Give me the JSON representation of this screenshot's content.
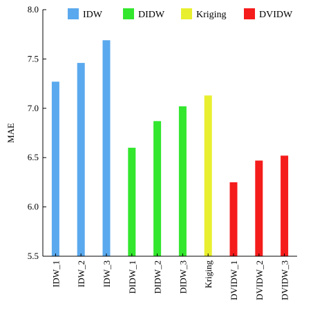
{
  "chart_data": {
    "type": "bar",
    "title": "",
    "xlabel": "",
    "ylabel": "MAE",
    "ylim": [
      5.5,
      8.0
    ],
    "yticks": [
      "5.5",
      "6.0",
      "6.5",
      "7.0",
      "7.5",
      "8.0"
    ],
    "grid": false,
    "legend_position": "top",
    "categories": [
      "IDW_1",
      "IDW_2",
      "IDW_3",
      "DIDW_1",
      "DIDW_2",
      "DIDW_3",
      "Kriging",
      "DVIDW_1",
      "DVIDW_2",
      "DVIDW_3"
    ],
    "values": [
      7.27,
      7.46,
      7.69,
      6.6,
      6.87,
      7.02,
      7.13,
      6.25,
      6.47,
      6.52
    ],
    "groups": [
      "IDW",
      "IDW",
      "IDW",
      "DIDW",
      "DIDW",
      "DIDW",
      "Kriging",
      "DVIDW",
      "DVIDW",
      "DVIDW"
    ],
    "series": [
      {
        "name": "IDW",
        "color": "#5aa9ee"
      },
      {
        "name": "DIDW",
        "color": "#33e62e"
      },
      {
        "name": "Kriging",
        "color": "#e8ef2f"
      },
      {
        "name": "DVIDW",
        "color": "#f51c1c"
      }
    ]
  }
}
